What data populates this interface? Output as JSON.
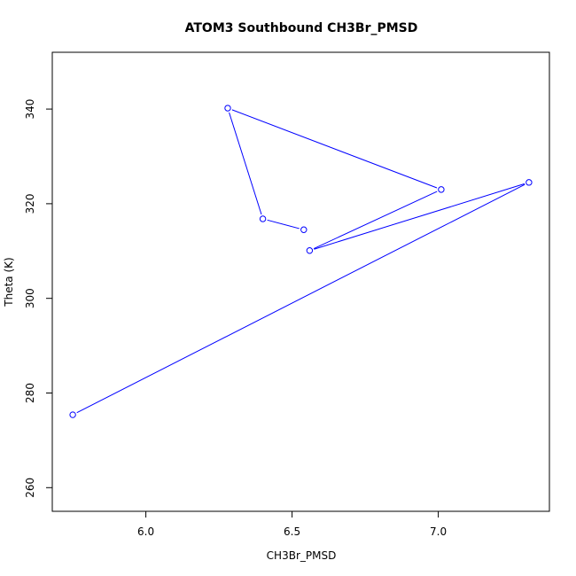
{
  "chart_data": {
    "type": "line",
    "title": "ATOM3 Southbound CH3Br_PMSD",
    "xlabel": "CH3Br_PMSD",
    "ylabel": "Theta (K)",
    "xlim": [
      5.68,
      7.38
    ],
    "ylim": [
      255,
      352
    ],
    "x_ticks": [
      6.0,
      6.5,
      7.0
    ],
    "x_tick_labels": [
      "6.0",
      "6.5",
      "7.0"
    ],
    "y_ticks": [
      260,
      280,
      300,
      320,
      340
    ],
    "y_tick_labels": [
      "260",
      "280",
      "300",
      "320",
      "340"
    ],
    "grid": false,
    "markers": "open-circle",
    "series": [
      {
        "color": "#0000ff",
        "x": [
          6.54,
          6.4,
          6.28,
          7.01,
          6.56,
          7.31,
          5.75
        ],
        "y": [
          314.5,
          316.8,
          340.2,
          323.0,
          310.1,
          324.5,
          275.4
        ]
      }
    ]
  }
}
